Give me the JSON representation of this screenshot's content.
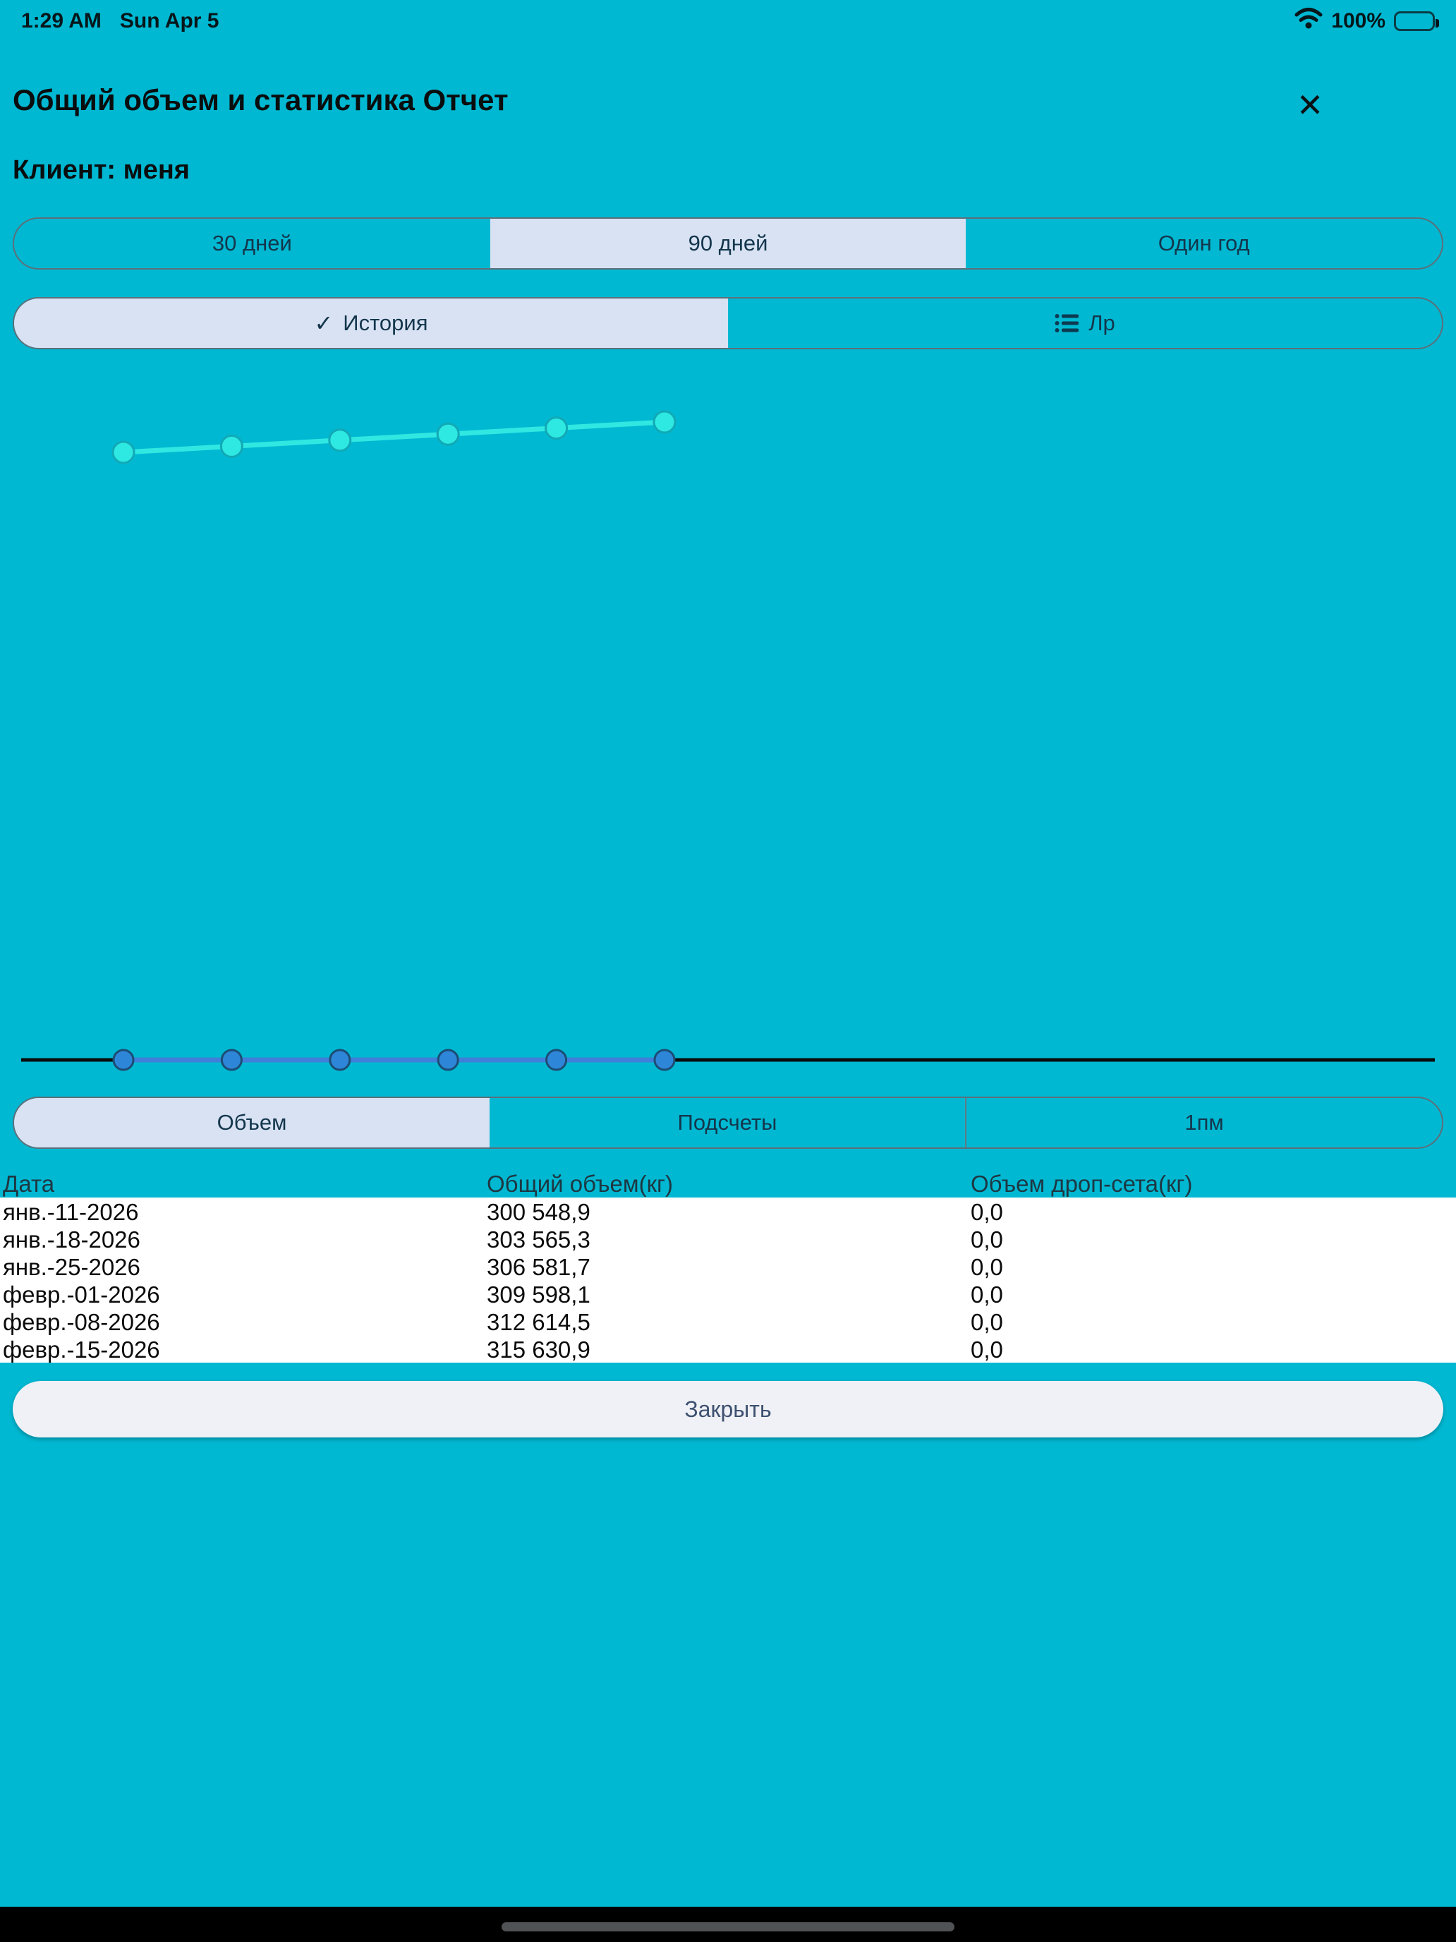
{
  "status_bar": {
    "time": "1:29 AM",
    "date": "Sun Apr 5",
    "battery_percent": "100%"
  },
  "header": {
    "title": "Общий объем и статистика Отчет"
  },
  "client_line": "Клиент: меня",
  "icons": {
    "close": "✕",
    "check": "✓"
  },
  "period_tabs": [
    {
      "label": "30 дней",
      "selected": false
    },
    {
      "label": "90 дней",
      "selected": true
    },
    {
      "label": "Один год",
      "selected": false
    }
  ],
  "view_tabs": [
    {
      "label": "История",
      "selected": true
    },
    {
      "label": "Лр",
      "selected": false
    }
  ],
  "metric_tabs": [
    {
      "label": "Объем",
      "selected": true
    },
    {
      "label": "Подсчеты",
      "selected": false
    },
    {
      "label": "1пм",
      "selected": false
    }
  ],
  "chart_data": {
    "type": "line",
    "title": "",
    "x": [
      "янв.-11-2026",
      "янв.-18-2026",
      "янв.-25-2026",
      "февр.-01-2026",
      "февр.-08-2026",
      "февр.-15-2026"
    ],
    "series": [
      {
        "name": "Общий объем(кг)",
        "values": [
          300548.9,
          303565.3,
          306581.7,
          309598.1,
          312614.5,
          315630.9
        ]
      },
      {
        "name": "Объем дроп-сета(кг)",
        "values": [
          0.0,
          0.0,
          0.0,
          0.0,
          0.0,
          0.0
        ]
      }
    ],
    "axes_hidden": true,
    "legend": "none",
    "grid": false,
    "line_color": "#30e8e1",
    "dot_fill": "#2ee9e2",
    "dot_stroke": "#12a9b6",
    "slider_line_color": "#0b0b0b",
    "slider_blue_line": "#3f7fd9",
    "slider_dot_fill": "#2e86d8",
    "slider_dot_stroke": "#1c4c74"
  },
  "table": {
    "columns": [
      "Дата",
      "Общий объем(кг)",
      "Объем дроп-сета(кг)"
    ],
    "rows": [
      {
        "date": "янв.-11-2026",
        "total": "300 548,9",
        "dropset": "0,0"
      },
      {
        "date": "янв.-18-2026",
        "total": "303 565,3",
        "dropset": "0,0"
      },
      {
        "date": "янв.-25-2026",
        "total": "306 581,7",
        "dropset": "0,0"
      },
      {
        "date": "февр.-01-2026",
        "total": "309 598,1",
        "dropset": "0,0"
      },
      {
        "date": "февр.-08-2026",
        "total": "312 614,5",
        "dropset": "0,0"
      },
      {
        "date": "февр.-15-2026",
        "total": "315 630,9",
        "dropset": "0,0"
      }
    ]
  },
  "close_button": "Закрыть",
  "colors": {
    "background": "#00b8d2",
    "selected_segment": "#d8e2f3",
    "segment_text": "#14364c",
    "table_bg": "#ffffff"
  }
}
